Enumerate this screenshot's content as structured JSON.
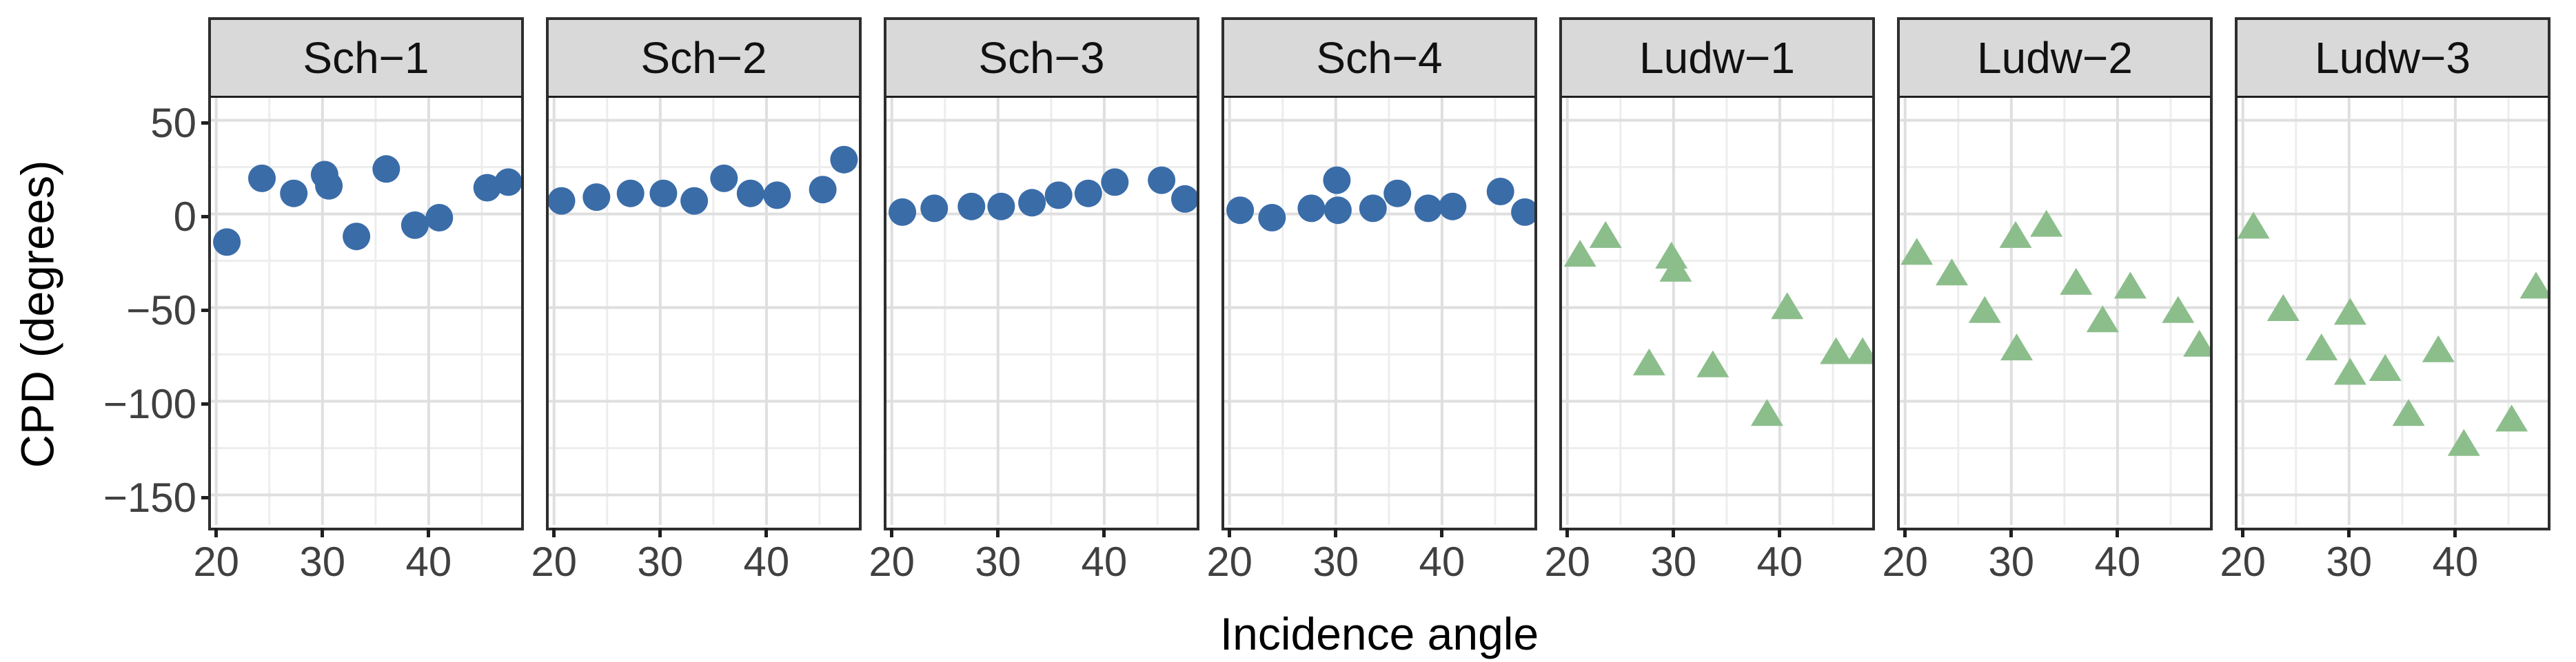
{
  "chart_data": {
    "type": "scatter",
    "title": "",
    "xlabel": "Incidence angle",
    "ylabel": "CPD (degrees)",
    "xlim": [
      19.5,
      48.7
    ],
    "ylim": [
      -166,
      62
    ],
    "grid": true,
    "legend": "none",
    "x_ticks": [
      {
        "value": 20,
        "label": "20"
      },
      {
        "value": 30,
        "label": "30"
      },
      {
        "value": 40,
        "label": "40"
      }
    ],
    "y_ticks": [
      {
        "value": 50,
        "label": "50"
      },
      {
        "value": 0,
        "label": "0"
      },
      {
        "value": -50,
        "label": "−50"
      },
      {
        "value": -100,
        "label": "−100"
      },
      {
        "value": -150,
        "label": "−150"
      }
    ],
    "x_minor": [
      25,
      35,
      45
    ],
    "y_minor": [
      25,
      -25,
      -75,
      -125
    ],
    "strip_fill": "#d9d9d9",
    "panel_border": "#2e2e2e",
    "groups": {
      "Sch": {
        "color": "#3a6ca8",
        "marker": "circle"
      },
      "Ludw": {
        "color": "#8cbe8c",
        "marker": "triangle"
      }
    },
    "facets": [
      {
        "label": "Sch−1",
        "group": "Sch",
        "points": [
          [
            21,
            -15
          ],
          [
            24.3,
            19
          ],
          [
            27.3,
            11
          ],
          [
            30.2,
            21
          ],
          [
            30.6,
            15
          ],
          [
            33.2,
            -12
          ],
          [
            36,
            24
          ],
          [
            38.7,
            -6
          ],
          [
            41,
            -2
          ],
          [
            45.5,
            14
          ],
          [
            47.5,
            17
          ]
        ]
      },
      {
        "label": "Sch−2",
        "group": "Sch",
        "points": [
          [
            20.7,
            7
          ],
          [
            24,
            9
          ],
          [
            27.2,
            11
          ],
          [
            30.3,
            11
          ],
          [
            33.2,
            7
          ],
          [
            36,
            19
          ],
          [
            38.5,
            11
          ],
          [
            41,
            10
          ],
          [
            45.3,
            13
          ],
          [
            47.3,
            29
          ]
        ]
      },
      {
        "label": "Sch−3",
        "group": "Sch",
        "points": [
          [
            21,
            1
          ],
          [
            24,
            3
          ],
          [
            27.5,
            4
          ],
          [
            30.3,
            4
          ],
          [
            33.2,
            6
          ],
          [
            35.7,
            10
          ],
          [
            38.5,
            11
          ],
          [
            41,
            17
          ],
          [
            45.4,
            18
          ],
          [
            47.6,
            8
          ]
        ]
      },
      {
        "label": "Sch−4",
        "group": "Sch",
        "points": [
          [
            21,
            2
          ],
          [
            24,
            -2
          ],
          [
            27.7,
            3
          ],
          [
            30.1,
            18
          ],
          [
            30.2,
            2
          ],
          [
            33.5,
            3
          ],
          [
            35.8,
            11
          ],
          [
            38.7,
            3
          ],
          [
            41,
            4
          ],
          [
            45.5,
            12
          ],
          [
            47.8,
            1
          ]
        ]
      },
      {
        "label": "Ludw−1",
        "group": "Ludw",
        "points": [
          [
            21.2,
            -23
          ],
          [
            23.6,
            -13
          ],
          [
            27.7,
            -81
          ],
          [
            29.8,
            -24
          ],
          [
            30.2,
            -31
          ],
          [
            33.7,
            -82
          ],
          [
            38.8,
            -108
          ],
          [
            40.7,
            -51
          ],
          [
            45.3,
            -75
          ],
          [
            47.8,
            -75
          ]
        ]
      },
      {
        "label": "Ludw−2",
        "group": "Ludw",
        "points": [
          [
            21.1,
            -22
          ],
          [
            24.4,
            -33
          ],
          [
            27.5,
            -53
          ],
          [
            30.4,
            -13
          ],
          [
            30.5,
            -73
          ],
          [
            33.3,
            -7
          ],
          [
            36.1,
            -38
          ],
          [
            38.6,
            -58
          ],
          [
            41.2,
            -40
          ],
          [
            45.7,
            -53
          ],
          [
            47.7,
            -71
          ]
        ]
      },
      {
        "label": "Ludw−3",
        "group": "Ludw",
        "points": [
          [
            21,
            -8
          ],
          [
            23.8,
            -52
          ],
          [
            27.4,
            -73
          ],
          [
            30.1,
            -54
          ],
          [
            30.1,
            -86
          ],
          [
            33.4,
            -84
          ],
          [
            35.6,
            -108
          ],
          [
            38.4,
            -74
          ],
          [
            40.8,
            -124
          ],
          [
            45.3,
            -111
          ],
          [
            47.6,
            -40
          ]
        ]
      }
    ]
  }
}
